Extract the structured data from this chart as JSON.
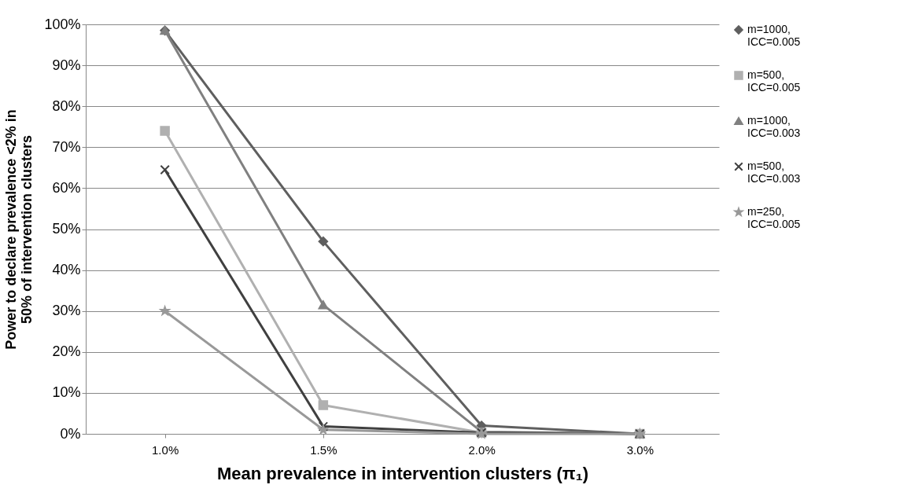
{
  "chart_data": {
    "type": "line",
    "xlabel": "Mean prevalence in intervention clusters (π₁)",
    "ylabel": "Power to declare prevalence <2% in 50% of intervention clusters",
    "categories": [
      "1.0%",
      "1.5%",
      "2.0%",
      "3.0%"
    ],
    "series": [
      {
        "name": "m=1000, ICC=0.005",
        "color": "#5f5f5f",
        "marker": "diamond",
        "values": [
          98.5,
          47,
          2,
          0
        ]
      },
      {
        "name": "m=500, ICC=0.005",
        "color": "#b0b0b0",
        "marker": "square",
        "values": [
          74,
          7,
          0.3,
          0
        ]
      },
      {
        "name": "m=1000, ICC=0.003",
        "color": "#808080",
        "marker": "triangle",
        "values": [
          98.5,
          31.5,
          0.5,
          0
        ]
      },
      {
        "name": "m=500, ICC=0.003",
        "color": "#404040",
        "marker": "cross",
        "values": [
          64.5,
          1.8,
          0.3,
          0
        ]
      },
      {
        "name": "m=250, ICC=0.005",
        "color": "#999999",
        "marker": "star",
        "values": [
          30,
          1,
          0,
          0
        ]
      }
    ],
    "ylim": [
      0,
      100
    ],
    "yticks": [
      {
        "value": 0,
        "label": "0%"
      },
      {
        "value": 10,
        "label": "10%"
      },
      {
        "value": 20,
        "label": "20%"
      },
      {
        "value": 30,
        "label": "30%"
      },
      {
        "value": 40,
        "label": "40%"
      },
      {
        "value": 50,
        "label": "50%"
      },
      {
        "value": 60,
        "label": "60%"
      },
      {
        "value": 70,
        "label": "70%"
      },
      {
        "value": 80,
        "label": "80%"
      },
      {
        "value": 90,
        "label": "90%"
      },
      {
        "value": 100,
        "label": "100%"
      }
    ],
    "grid": "y",
    "legend": "right",
    "line_style": "solid"
  }
}
